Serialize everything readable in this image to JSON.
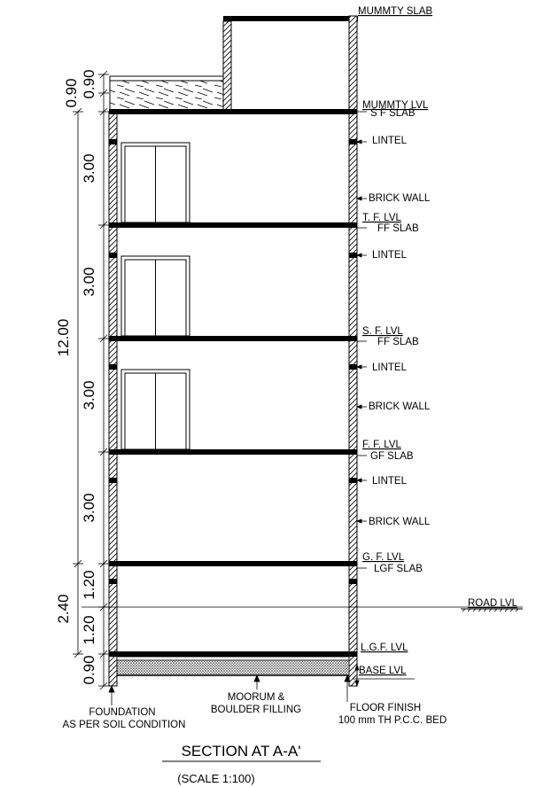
{
  "title": "SECTION AT A-A'",
  "scale": "(SCALE 1:100)",
  "labels": {
    "mummty_slab": "MUMMTY SLAB",
    "mummty_lvl": "MUMMTY LVL",
    "sf_slab": "S F SLAB",
    "lintel": "LINTEL",
    "brick_wall": "BRICK WALL",
    "tf_lvl": "T. F. LVL",
    "ff_slab": "FF SLAB",
    "sf_lvl": "S. F. LVL",
    "ff_lvl": "F. F. LVL",
    "gf_slab": "GF SLAB",
    "gf_lvl": "G. F. LVL",
    "lgf_slab": "LGF SLAB",
    "road_lvl": "ROAD LVL",
    "lgf_lvl": "L.G.F. LVL",
    "base_lvl": "BASE LVL",
    "floor_finish": "FLOOR FINISH",
    "pcc_bed": "100 mm TH P.C.C. BED",
    "moorum_1": "MOORUM &",
    "moorum_2": "BOULDER FILLING",
    "foundation_1": "FOUNDATION",
    "foundation_2": "AS PER SOIL CONDITION"
  },
  "dimensions": {
    "parapet_a": "0.90",
    "parapet_b": "0.90",
    "floor_height": "3.00",
    "total_height": "12.00",
    "lower_total": "2.40",
    "lower_a": "1.20",
    "lower_b": "1.20",
    "base": "0.90"
  }
}
